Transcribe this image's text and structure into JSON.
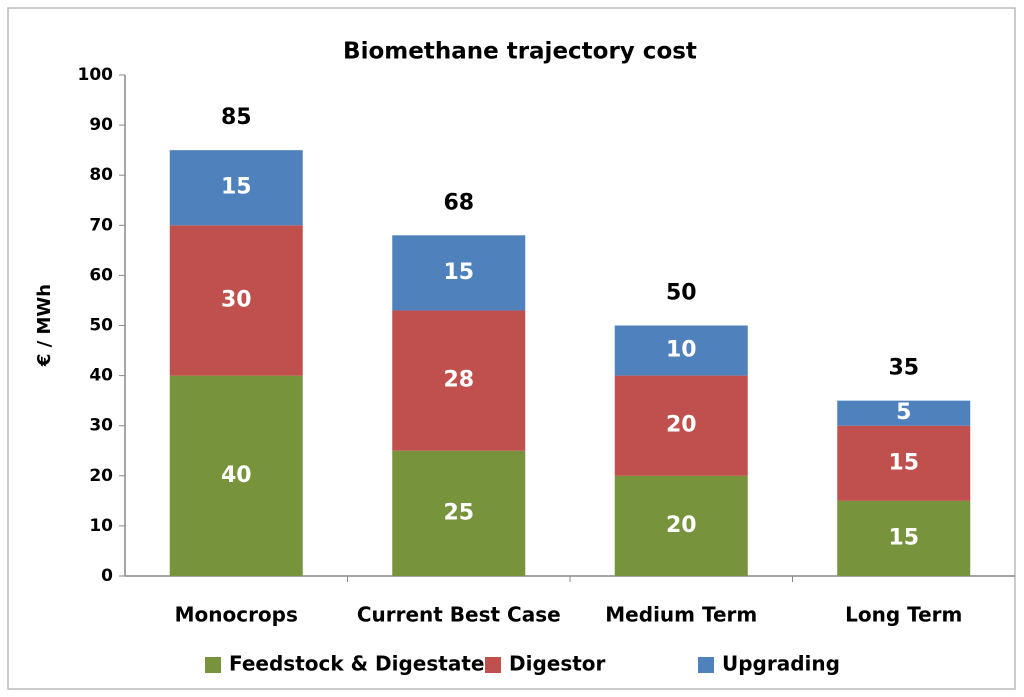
{
  "chart_data": {
    "type": "stacked_bar",
    "title": "Biomethane trajectory cost",
    "y_label": "€ / MWh",
    "categories": [
      "Monocrops",
      "Current Best Case",
      "Medium Term",
      "Long Term"
    ],
    "series": [
      {
        "name": "Feedstock & Digestate",
        "color": "#77933c",
        "values": [
          40,
          25,
          20,
          15
        ]
      },
      {
        "name": "Digestor",
        "color": "#c0504d",
        "values": [
          30,
          28,
          20,
          15
        ]
      },
      {
        "name": "Upgrading",
        "color": "#4f81bd",
        "values": [
          15,
          15,
          10,
          5
        ]
      }
    ],
    "totals": [
      85,
      68,
      50,
      35
    ],
    "ylim": [
      0,
      100
    ],
    "yticks": [
      0,
      10,
      20,
      30,
      40,
      50,
      60,
      70,
      80,
      90,
      100
    ],
    "grid": false,
    "legend": "bottom"
  }
}
